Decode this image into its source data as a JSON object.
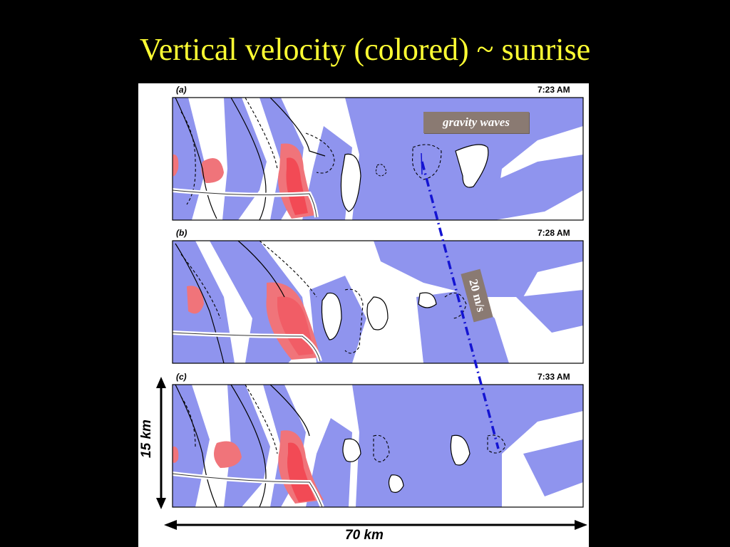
{
  "slide": {
    "title": "Vertical velocity (colored) ~ sunrise"
  },
  "figure": {
    "panels": [
      {
        "letter": "(a)",
        "time": "7:23 AM"
      },
      {
        "letter": "(b)",
        "time": "7:28 AM"
      },
      {
        "letter": "(c)",
        "time": "7:33 AM"
      }
    ],
    "annotations": {
      "gravity_waves": "gravity waves",
      "speed": "20 m/s"
    },
    "scale": {
      "horizontal": "70 km",
      "vertical": "15 km"
    }
  },
  "colors": {
    "title": "#ffff33",
    "downdraft_fill": "#8f94ee",
    "updraft_fill": "#f0747a",
    "updraft_core": "#f24a55",
    "callout_box": "#8a7a72",
    "track_line": "#1414d2"
  }
}
